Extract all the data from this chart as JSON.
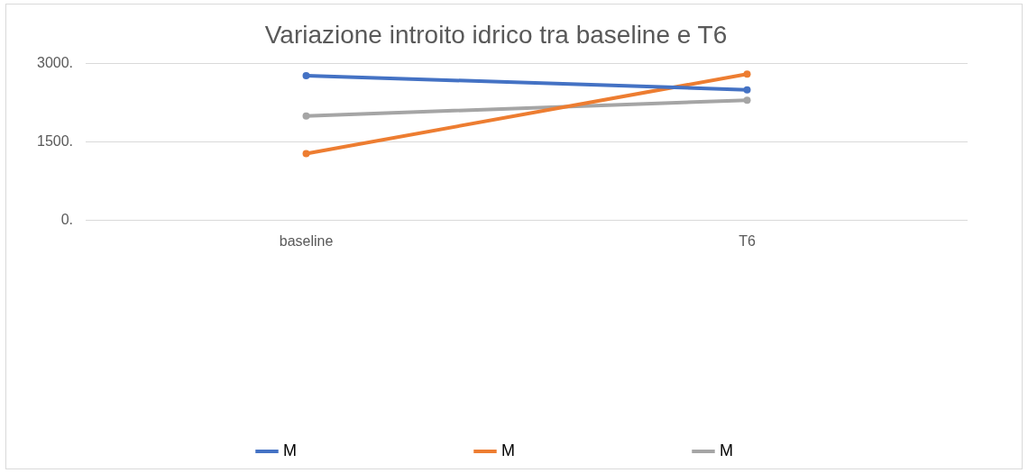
{
  "chart_data": {
    "type": "line",
    "title": "Variazione introito idrico tra baseline e T6",
    "categories": [
      "baseline",
      "T6"
    ],
    "series": [
      {
        "name": "M",
        "color": "#4472c4",
        "values": [
          2770,
          2500
        ]
      },
      {
        "name": "M",
        "color": "#ed7d31",
        "values": [
          1280,
          2800
        ]
      },
      {
        "name": "M",
        "color": "#a5a5a5",
        "values": [
          2000,
          2300
        ]
      }
    ],
    "ylim": [
      0,
      3000
    ],
    "yticks": [
      {
        "value": 0,
        "label": "0."
      },
      {
        "value": 1500,
        "label": "1500."
      },
      {
        "value": 3000,
        "label": "3000."
      }
    ],
    "grid": "y",
    "legend": "bottom",
    "marker": "circle",
    "line_style": "solid"
  }
}
